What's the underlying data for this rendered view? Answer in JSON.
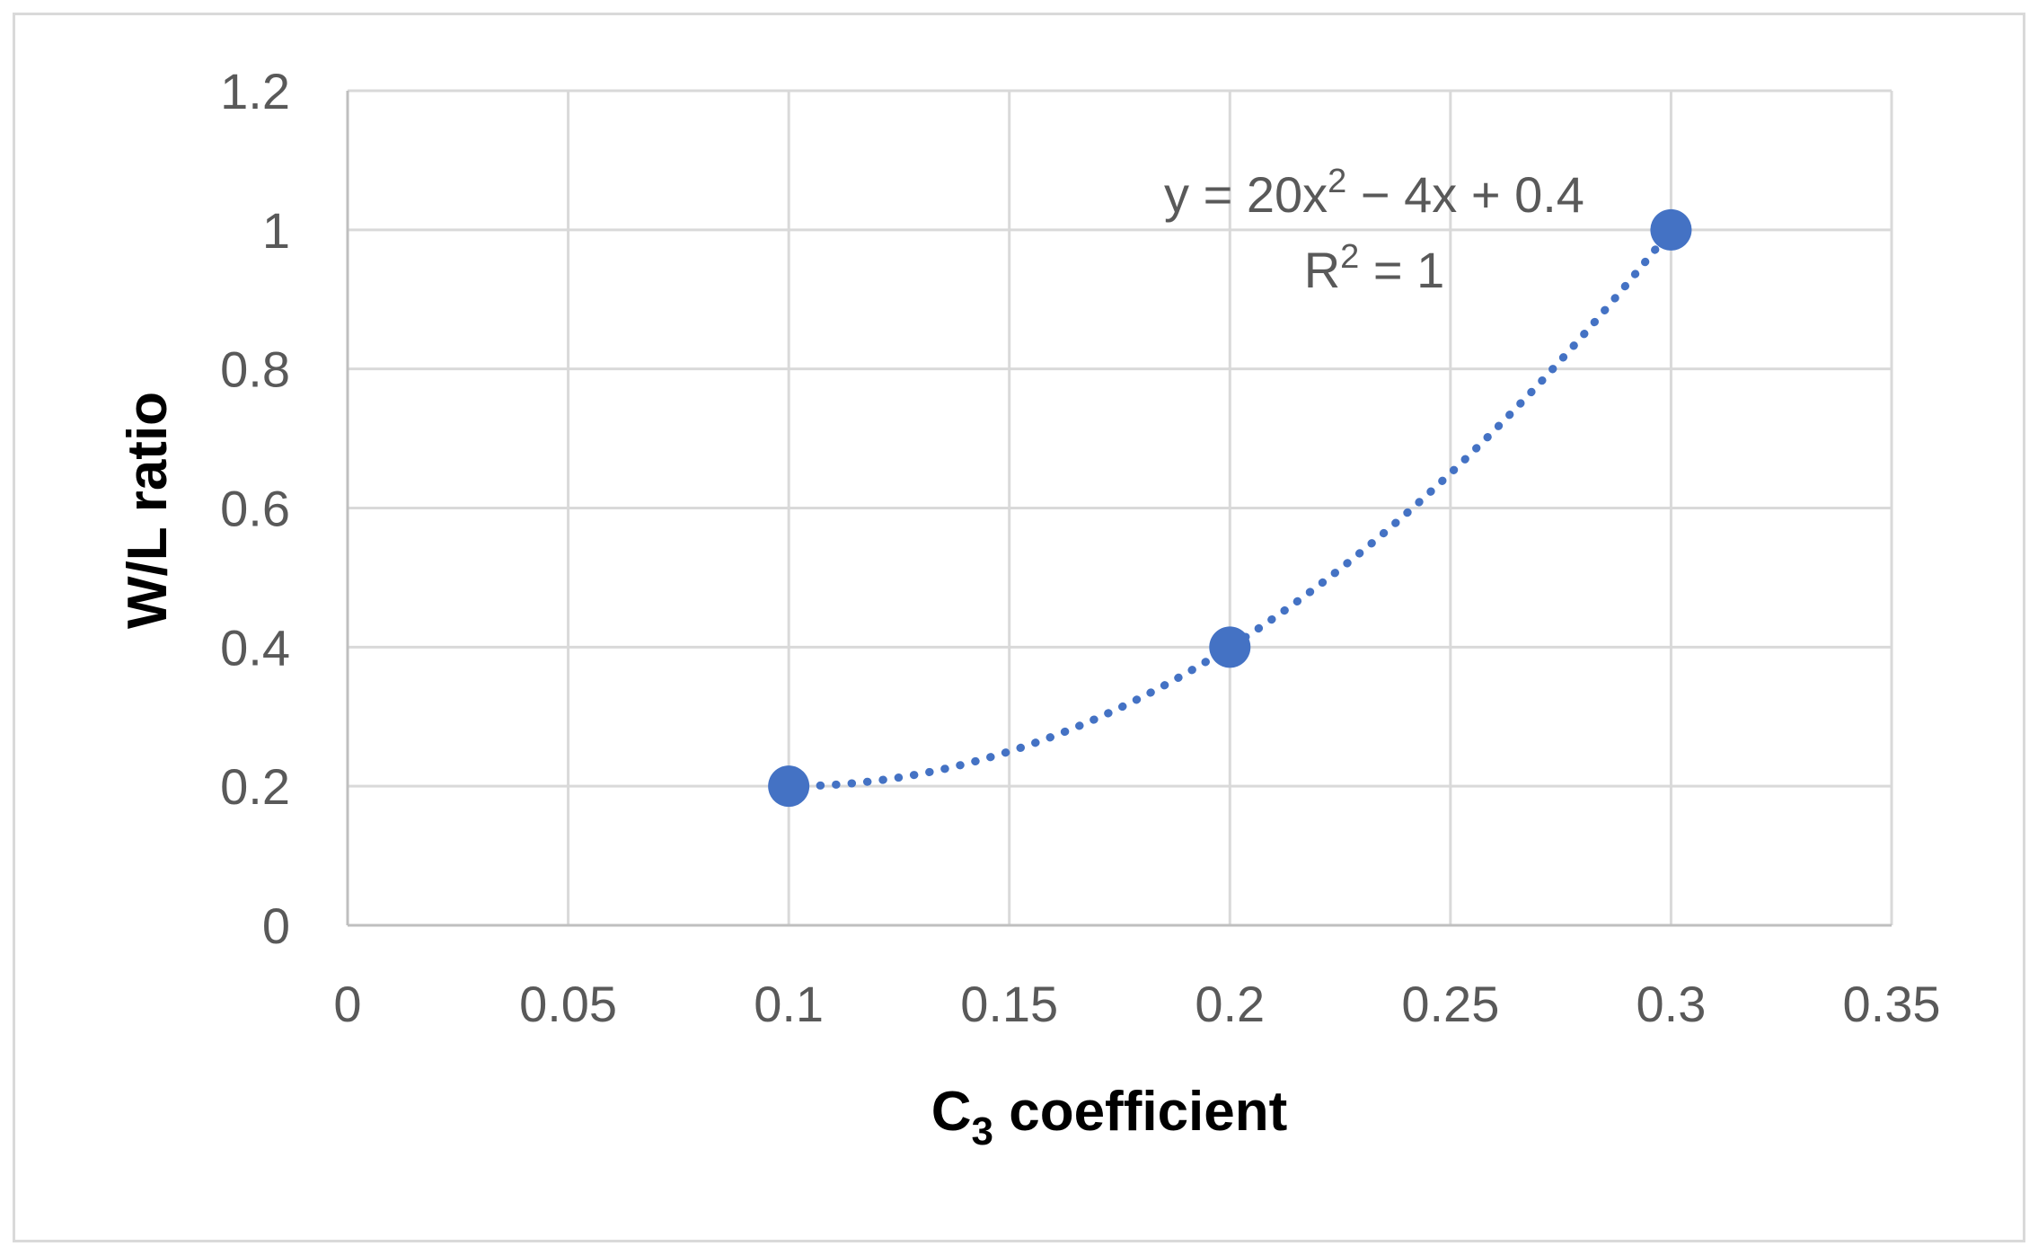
{
  "chart_data": {
    "type": "scatter",
    "xlabel": {
      "main": "C",
      "subscript": "3",
      "rest": " coefficient"
    },
    "ylabel": "W/L ratio",
    "xlim": [
      0,
      0.35
    ],
    "ylim": [
      0,
      1.2
    ],
    "x_ticks": [
      "0",
      "0.05",
      "0.1",
      "0.15",
      "0.2",
      "0.25",
      "0.3",
      "0.35"
    ],
    "y_ticks": [
      "0",
      "0.2",
      "0.4",
      "0.6",
      "0.8",
      "1",
      "1.2"
    ],
    "grid": true,
    "series": [
      {
        "x": [
          0.1,
          0.2,
          0.3
        ],
        "y": [
          0.2,
          0.4,
          1.0
        ]
      }
    ],
    "trendline": {
      "type": "polynomial",
      "order": 2,
      "coefficients": [
        20,
        -4,
        0.4
      ],
      "style": "dotted",
      "equation": {
        "prefix": "y = 20x",
        "sup": "2",
        "suffix": " − 4x + 0.4"
      },
      "r_squared": {
        "prefix": "R",
        "sup": "2",
        "suffix": " = 1"
      }
    },
    "colors": {
      "series": "#4472c4",
      "grid": "#d9d9d9",
      "axis_line": "#bfbfbf",
      "tick_text": "#595959",
      "border": "#d9d9d9"
    }
  }
}
